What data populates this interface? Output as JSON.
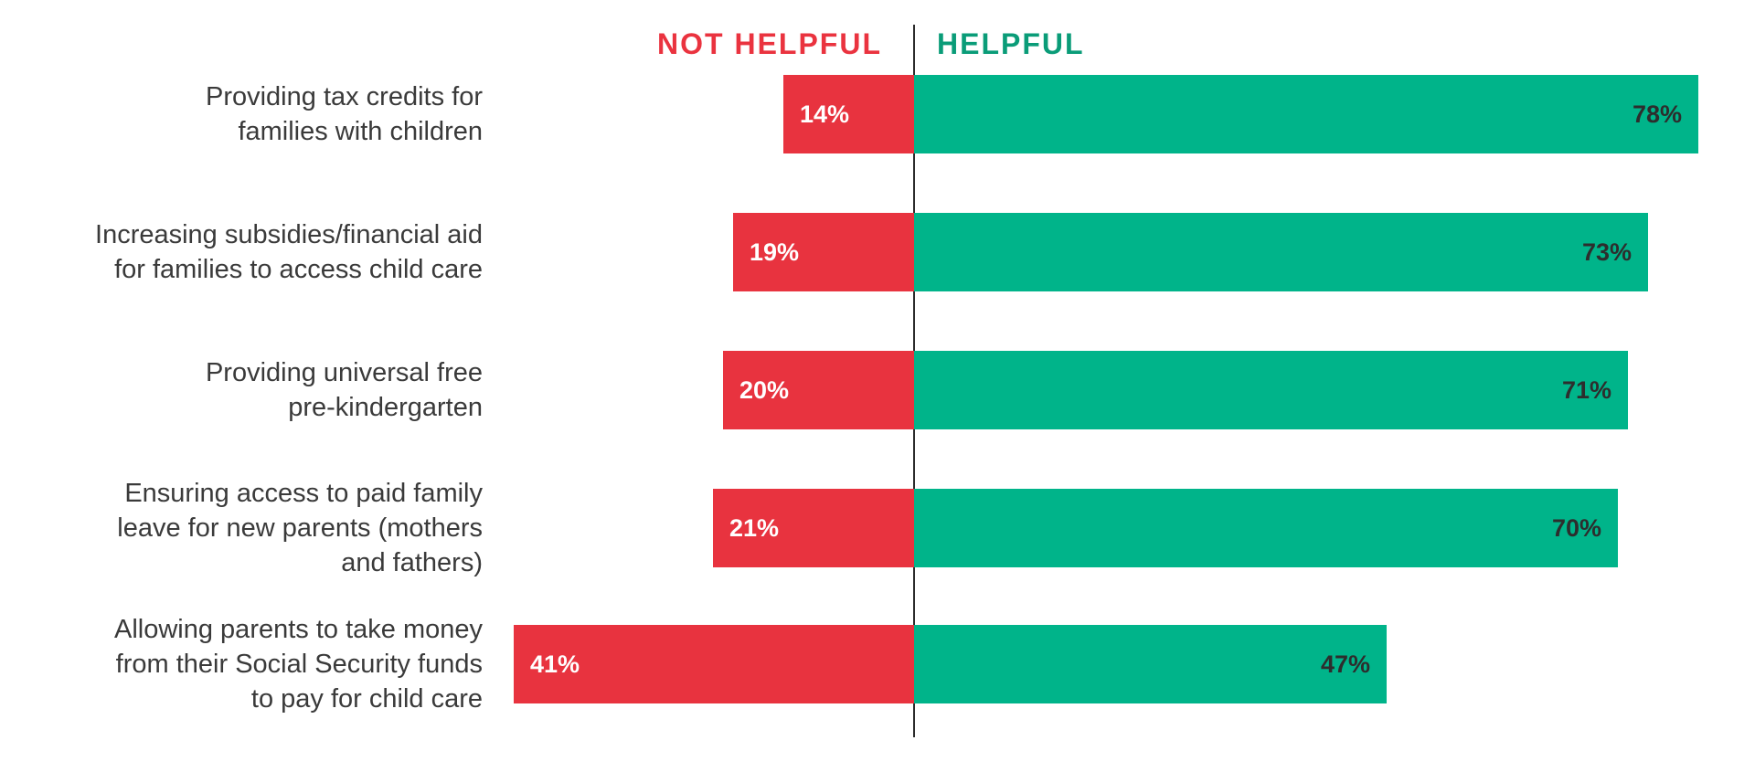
{
  "page": {
    "background_color": "#ffffff"
  },
  "header": {
    "left_label": "NOT HELPFUL",
    "right_label": "HELPFUL",
    "left_color": "#ea333f",
    "right_color": "#0a9c78"
  },
  "chart_data": {
    "type": "bar",
    "orientation": "diverging-horizontal",
    "title": "",
    "legend_position": "top",
    "grid": false,
    "value_suffix": "%",
    "categories": [
      "Providing tax credits for\nfamilies with children",
      "Increasing subsidies/financial aid\nfor families to access child care",
      "Providing universal free\npre-kindergarten",
      "Ensuring access to paid family\nleave for new parents (mothers\nand fathers)",
      "Allowing parents to take money\nfrom their Social Security funds\nto pay for child care"
    ],
    "series": [
      {
        "name": "NOT HELPFUL",
        "side": "left",
        "color": "#e8333f",
        "label_color": "#ffffff",
        "values": [
          14,
          19,
          20,
          21,
          41
        ]
      },
      {
        "name": "HELPFUL",
        "side": "right",
        "color": "#00b48a",
        "label_color": "#2d2d2d",
        "values": [
          78,
          73,
          71,
          70,
          47
        ]
      }
    ],
    "axis": {
      "divider_color": "#2b2b2b",
      "xlim_left_percent": 45,
      "xlim_right_percent": 84
    }
  }
}
